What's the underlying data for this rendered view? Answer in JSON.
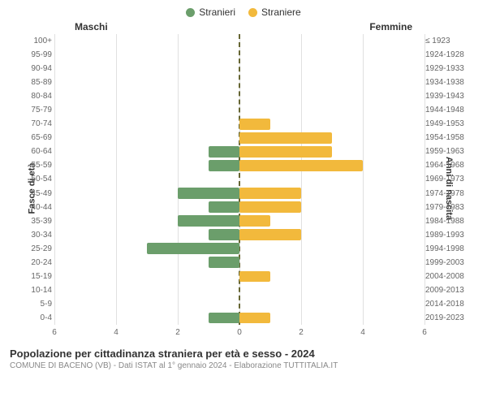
{
  "chart": {
    "type": "population-pyramid",
    "legend": [
      {
        "label": "Stranieri",
        "color": "#6b9e6b"
      },
      {
        "label": "Straniere",
        "color": "#f2b93c"
      }
    ],
    "header_left": "Maschi",
    "header_right": "Femmine",
    "y_axis_left_title": "Fasce di età",
    "y_axis_right_title": "Anni di nascita",
    "x_max": 6,
    "x_ticks": [
      6,
      4,
      2,
      0,
      2,
      4,
      6
    ],
    "grid_color": "#e0e0e0",
    "center_line_color": "#666633",
    "bar_male_color": "#6b9e6b",
    "bar_female_color": "#f2b93c",
    "background_color": "#ffffff",
    "rows": [
      {
        "age": "100+",
        "birth": "≤ 1923",
        "male": 0,
        "female": 0
      },
      {
        "age": "95-99",
        "birth": "1924-1928",
        "male": 0,
        "female": 0
      },
      {
        "age": "90-94",
        "birth": "1929-1933",
        "male": 0,
        "female": 0
      },
      {
        "age": "85-89",
        "birth": "1934-1938",
        "male": 0,
        "female": 0
      },
      {
        "age": "80-84",
        "birth": "1939-1943",
        "male": 0,
        "female": 0
      },
      {
        "age": "75-79",
        "birth": "1944-1948",
        "male": 0,
        "female": 0
      },
      {
        "age": "70-74",
        "birth": "1949-1953",
        "male": 0,
        "female": 1
      },
      {
        "age": "65-69",
        "birth": "1954-1958",
        "male": 0,
        "female": 3
      },
      {
        "age": "60-64",
        "birth": "1959-1963",
        "male": 1,
        "female": 3
      },
      {
        "age": "55-59",
        "birth": "1964-1968",
        "male": 1,
        "female": 4
      },
      {
        "age": "50-54",
        "birth": "1969-1973",
        "male": 0,
        "female": 0
      },
      {
        "age": "45-49",
        "birth": "1974-1978",
        "male": 2,
        "female": 2
      },
      {
        "age": "40-44",
        "birth": "1979-1983",
        "male": 1,
        "female": 2
      },
      {
        "age": "35-39",
        "birth": "1984-1988",
        "male": 2,
        "female": 1
      },
      {
        "age": "30-34",
        "birth": "1989-1993",
        "male": 1,
        "female": 2
      },
      {
        "age": "25-29",
        "birth": "1994-1998",
        "male": 3,
        "female": 0
      },
      {
        "age": "20-24",
        "birth": "1999-2003",
        "male": 1,
        "female": 0
      },
      {
        "age": "15-19",
        "birth": "2004-2008",
        "male": 0,
        "female": 1
      },
      {
        "age": "10-14",
        "birth": "2009-2013",
        "male": 0,
        "female": 0
      },
      {
        "age": "5-9",
        "birth": "2014-2018",
        "male": 0,
        "female": 0
      },
      {
        "age": "0-4",
        "birth": "2019-2023",
        "male": 1,
        "female": 1
      }
    ],
    "title": "Popolazione per cittadinanza straniera per età e sesso - 2024",
    "subtitle": "COMUNE DI BACENO (VB) - Dati ISTAT al 1° gennaio 2024 - Elaborazione TUTTITALIA.IT",
    "title_fontsize": 13,
    "subtitle_fontsize": 10,
    "label_fontsize": 10
  }
}
